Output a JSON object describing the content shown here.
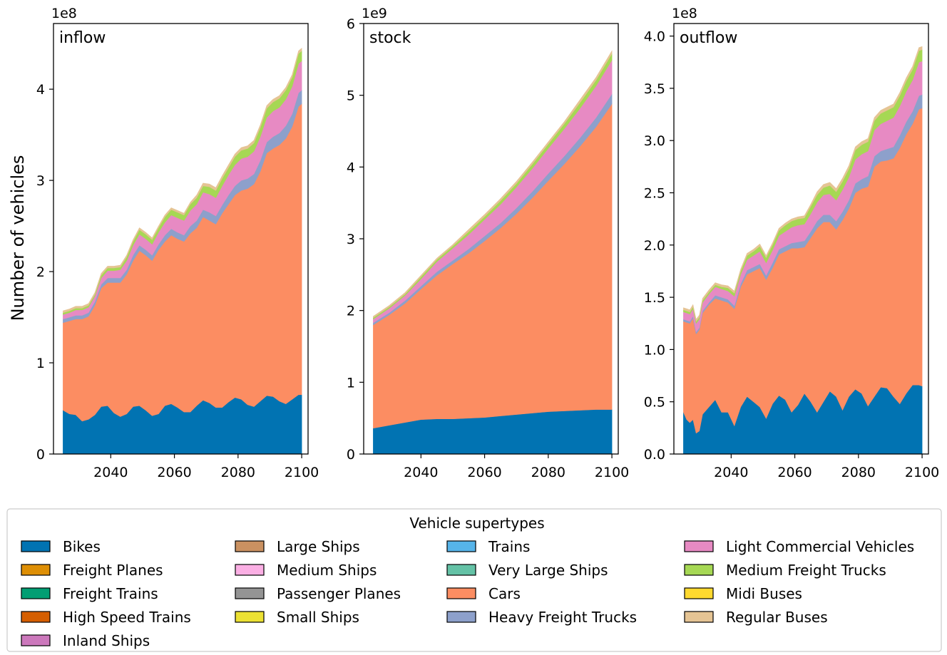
{
  "figure": {
    "ylabel": "Number of vehicles",
    "legend_title": "Vehicle supertypes"
  },
  "colors": {
    "Bikes": "#0173b2",
    "Freight Planes": "#de8f05",
    "Freight Trains": "#029e73",
    "High Speed Trains": "#d55e00",
    "Inland Ships": "#cc78bc",
    "Large Ships": "#ca9161",
    "Medium Ships": "#fbafe4",
    "Passenger Planes": "#949494",
    "Small Ships": "#ece133",
    "Trains": "#56b4e9",
    "Very Large Ships": "#64c2a6",
    "Cars": "#fc8d62",
    "Heavy Freight Trucks": "#8da0cb",
    "Light Commercial Vehicles": "#e78ac3",
    "Medium Freight Trucks": "#a6d854",
    "Midi Buses": "#ffd92f",
    "Regular Buses": "#e5c494"
  },
  "legend": {
    "columns": [
      [
        "Bikes",
        "Freight Planes",
        "Freight Trains",
        "High Speed Trains",
        "Inland Ships"
      ],
      [
        "Large Ships",
        "Medium Ships",
        "Passenger Planes",
        "Small Ships"
      ],
      [
        "Trains",
        "Very Large Ships",
        "Cars",
        "Heavy Freight Trucks"
      ],
      [
        "Light Commercial Vehicles",
        "Medium Freight Trucks",
        "Midi Buses",
        "Regular Buses"
      ]
    ]
  },
  "chart_data": [
    {
      "type": "area",
      "stacked": true,
      "title": "inflow",
      "scale_label": "1e8",
      "ylabel": "Number of vehicles",
      "xlim": [
        2022,
        2102
      ],
      "ylim": [
        0,
        4.72
      ],
      "xticks": [
        2040,
        2060,
        2080,
        2100
      ],
      "yticks": [
        0,
        1,
        2,
        3,
        4
      ],
      "ytick_labels": [
        "0",
        "1",
        "2",
        "3",
        "4"
      ],
      "x": [
        2025,
        2027,
        2029,
        2031,
        2033,
        2035,
        2037,
        2039,
        2041,
        2043,
        2045,
        2047,
        2049,
        2051,
        2053,
        2055,
        2057,
        2059,
        2061,
        2063,
        2065,
        2067,
        2069,
        2071,
        2073,
        2075,
        2077,
        2079,
        2081,
        2083,
        2085,
        2087,
        2089,
        2091,
        2093,
        2095,
        2097,
        2099,
        2100
      ],
      "series": [
        {
          "name": "Bikes",
          "values": [
            0.48,
            0.44,
            0.43,
            0.36,
            0.38,
            0.43,
            0.52,
            0.53,
            0.45,
            0.41,
            0.44,
            0.52,
            0.53,
            0.48,
            0.42,
            0.44,
            0.53,
            0.55,
            0.51,
            0.46,
            0.46,
            0.53,
            0.59,
            0.56,
            0.51,
            0.51,
            0.57,
            0.62,
            0.6,
            0.54,
            0.52,
            0.58,
            0.64,
            0.63,
            0.58,
            0.55,
            0.6,
            0.65,
            0.65
          ]
        },
        {
          "name": "Cars",
          "values": [
            0.96,
            1.02,
            1.05,
            1.12,
            1.13,
            1.2,
            1.3,
            1.35,
            1.43,
            1.47,
            1.53,
            1.6,
            1.7,
            1.7,
            1.7,
            1.8,
            1.8,
            1.85,
            1.85,
            1.87,
            1.96,
            1.95,
            2.01,
            2.0,
            2.01,
            2.13,
            2.17,
            2.22,
            2.29,
            2.37,
            2.44,
            2.52,
            2.66,
            2.72,
            2.81,
            2.91,
            2.99,
            3.16,
            3.19
          ]
        },
        {
          "name": "Heavy Freight Trucks",
          "values": [
            0.04,
            0.04,
            0.04,
            0.04,
            0.04,
            0.04,
            0.04,
            0.05,
            0.05,
            0.05,
            0.05,
            0.06,
            0.06,
            0.06,
            0.06,
            0.06,
            0.07,
            0.07,
            0.07,
            0.07,
            0.08,
            0.08,
            0.08,
            0.09,
            0.09,
            0.09,
            0.1,
            0.1,
            0.11,
            0.11,
            0.11,
            0.12,
            0.12,
            0.13,
            0.13,
            0.14,
            0.14,
            0.15,
            0.15
          ]
        },
        {
          "name": "Light Commercial Vehicles",
          "values": [
            0.05,
            0.05,
            0.06,
            0.06,
            0.06,
            0.06,
            0.07,
            0.08,
            0.08,
            0.09,
            0.1,
            0.11,
            0.12,
            0.12,
            0.12,
            0.13,
            0.14,
            0.15,
            0.16,
            0.16,
            0.17,
            0.18,
            0.19,
            0.2,
            0.2,
            0.21,
            0.22,
            0.23,
            0.24,
            0.24,
            0.25,
            0.26,
            0.27,
            0.28,
            0.28,
            0.29,
            0.3,
            0.32,
            0.32
          ]
        },
        {
          "name": "Medium Freight Trucks",
          "values": [
            0.02,
            0.02,
            0.02,
            0.02,
            0.02,
            0.02,
            0.03,
            0.03,
            0.03,
            0.03,
            0.04,
            0.04,
            0.05,
            0.05,
            0.05,
            0.05,
            0.06,
            0.06,
            0.06,
            0.06,
            0.07,
            0.07,
            0.07,
            0.08,
            0.08,
            0.08,
            0.08,
            0.09,
            0.09,
            0.09,
            0.09,
            0.1,
            0.1,
            0.1,
            0.1,
            0.1,
            0.1,
            0.11,
            0.11
          ]
        },
        {
          "name": "Regular Buses",
          "values": [
            0.02,
            0.02,
            0.02,
            0.02,
            0.02,
            0.02,
            0.02,
            0.02,
            0.02,
            0.02,
            0.02,
            0.02,
            0.02,
            0.02,
            0.02,
            0.02,
            0.02,
            0.02,
            0.02,
            0.02,
            0.02,
            0.03,
            0.03,
            0.03,
            0.03,
            0.03,
            0.03,
            0.03,
            0.03,
            0.03,
            0.03,
            0.03,
            0.03,
            0.03,
            0.03,
            0.03,
            0.03,
            0.03,
            0.03
          ]
        }
      ]
    },
    {
      "type": "area",
      "stacked": true,
      "title": "stock",
      "scale_label": "1e9",
      "xlim": [
        2022,
        2102
      ],
      "ylim": [
        0,
        6.0
      ],
      "xticks": [
        2040,
        2060,
        2080,
        2100
      ],
      "yticks": [
        0,
        1,
        2,
        3,
        4,
        5,
        6
      ],
      "ytick_labels": [
        "0",
        "1",
        "2",
        "3",
        "4",
        "5",
        "6"
      ],
      "x": [
        2025,
        2030,
        2035,
        2040,
        2045,
        2050,
        2055,
        2060,
        2065,
        2070,
        2075,
        2080,
        2085,
        2090,
        2095,
        2100
      ],
      "series": [
        {
          "name": "Bikes",
          "values": [
            0.36,
            0.4,
            0.44,
            0.48,
            0.49,
            0.49,
            0.5,
            0.51,
            0.53,
            0.55,
            0.57,
            0.59,
            0.6,
            0.61,
            0.62,
            0.62
          ]
        },
        {
          "name": "Cars",
          "values": [
            1.44,
            1.54,
            1.66,
            1.82,
            2.0,
            2.16,
            2.3,
            2.46,
            2.62,
            2.8,
            3.0,
            3.22,
            3.44,
            3.68,
            3.94,
            4.26
          ]
        },
        {
          "name": "Heavy Freight Trucks",
          "values": [
            0.03,
            0.03,
            0.04,
            0.04,
            0.05,
            0.05,
            0.06,
            0.07,
            0.07,
            0.08,
            0.09,
            0.1,
            0.11,
            0.12,
            0.13,
            0.14
          ]
        },
        {
          "name": "Light Commercial Vehicles",
          "values": [
            0.05,
            0.06,
            0.07,
            0.1,
            0.14,
            0.17,
            0.2,
            0.23,
            0.26,
            0.29,
            0.32,
            0.35,
            0.38,
            0.41,
            0.44,
            0.47
          ]
        },
        {
          "name": "Medium Freight Trucks",
          "values": [
            0.02,
            0.02,
            0.02,
            0.03,
            0.03,
            0.03,
            0.04,
            0.04,
            0.05,
            0.05,
            0.06,
            0.06,
            0.07,
            0.08,
            0.08,
            0.09
          ]
        },
        {
          "name": "Regular Buses",
          "values": [
            0.02,
            0.02,
            0.02,
            0.02,
            0.02,
            0.02,
            0.03,
            0.03,
            0.03,
            0.03,
            0.03,
            0.03,
            0.03,
            0.04,
            0.04,
            0.04
          ]
        }
      ]
    },
    {
      "type": "area",
      "stacked": true,
      "title": "outflow",
      "scale_label": "1e8",
      "xlim": [
        2022,
        2102
      ],
      "ylim": [
        0,
        4.12
      ],
      "xticks": [
        2040,
        2060,
        2080,
        2100
      ],
      "yticks": [
        0,
        0.5,
        1.0,
        1.5,
        2.0,
        2.5,
        3.0,
        3.5,
        4.0
      ],
      "ytick_labels": [
        "0.0",
        "0.5",
        "1.0",
        "1.5",
        "2.0",
        "2.5",
        "3.0",
        "3.5",
        "4.0"
      ],
      "x": [
        2025,
        2026,
        2027,
        2028,
        2029,
        2030,
        2031,
        2033,
        2035,
        2037,
        2039,
        2041,
        2043,
        2045,
        2047,
        2049,
        2051,
        2053,
        2055,
        2057,
        2059,
        2061,
        2063,
        2065,
        2067,
        2069,
        2071,
        2073,
        2075,
        2077,
        2079,
        2081,
        2083,
        2085,
        2087,
        2089,
        2091,
        2093,
        2095,
        2097,
        2099,
        2100
      ],
      "series": [
        {
          "name": "Bikes",
          "values": [
            0.4,
            0.33,
            0.3,
            0.33,
            0.2,
            0.22,
            0.38,
            0.45,
            0.52,
            0.4,
            0.4,
            0.27,
            0.45,
            0.55,
            0.5,
            0.45,
            0.34,
            0.48,
            0.56,
            0.52,
            0.4,
            0.47,
            0.58,
            0.5,
            0.4,
            0.5,
            0.6,
            0.55,
            0.42,
            0.55,
            0.62,
            0.58,
            0.46,
            0.55,
            0.64,
            0.63,
            0.55,
            0.48,
            0.58,
            0.66,
            0.66,
            0.65
          ]
        },
        {
          "name": "Cars",
          "values": [
            0.87,
            0.93,
            0.95,
            0.97,
            0.95,
            0.97,
            0.97,
            0.98,
            0.97,
            1.07,
            1.05,
            1.12,
            1.15,
            1.17,
            1.25,
            1.33,
            1.33,
            1.3,
            1.35,
            1.42,
            1.57,
            1.5,
            1.4,
            1.57,
            1.76,
            1.72,
            1.62,
            1.6,
            1.82,
            1.8,
            1.88,
            1.96,
            2.1,
            2.2,
            2.16,
            2.18,
            2.28,
            2.45,
            2.48,
            2.5,
            2.64,
            2.66
          ]
        },
        {
          "name": "Heavy Freight Trucks",
          "values": [
            0.02,
            0.02,
            0.02,
            0.02,
            0.02,
            0.02,
            0.02,
            0.02,
            0.03,
            0.03,
            0.03,
            0.03,
            0.03,
            0.04,
            0.04,
            0.04,
            0.04,
            0.05,
            0.05,
            0.05,
            0.05,
            0.06,
            0.06,
            0.06,
            0.07,
            0.07,
            0.07,
            0.08,
            0.08,
            0.08,
            0.09,
            0.09,
            0.1,
            0.1,
            0.1,
            0.11,
            0.11,
            0.12,
            0.12,
            0.12,
            0.13,
            0.13
          ]
        },
        {
          "name": "Light Commercial Vehicles",
          "values": [
            0.07,
            0.07,
            0.07,
            0.07,
            0.08,
            0.08,
            0.08,
            0.08,
            0.08,
            0.08,
            0.08,
            0.09,
            0.09,
            0.1,
            0.11,
            0.12,
            0.12,
            0.12,
            0.13,
            0.14,
            0.15,
            0.16,
            0.16,
            0.17,
            0.18,
            0.19,
            0.2,
            0.2,
            0.21,
            0.22,
            0.23,
            0.24,
            0.24,
            0.25,
            0.26,
            0.27,
            0.28,
            0.28,
            0.29,
            0.3,
            0.32,
            0.32
          ]
        },
        {
          "name": "Medium Freight Trucks",
          "values": [
            0.02,
            0.02,
            0.02,
            0.02,
            0.02,
            0.02,
            0.02,
            0.02,
            0.02,
            0.02,
            0.03,
            0.03,
            0.03,
            0.04,
            0.04,
            0.05,
            0.05,
            0.05,
            0.05,
            0.06,
            0.06,
            0.06,
            0.06,
            0.07,
            0.07,
            0.07,
            0.08,
            0.08,
            0.08,
            0.08,
            0.09,
            0.09,
            0.09,
            0.09,
            0.1,
            0.1,
            0.1,
            0.1,
            0.1,
            0.1,
            0.11,
            0.11
          ]
        },
        {
          "name": "Regular Buses",
          "values": [
            0.02,
            0.02,
            0.02,
            0.02,
            0.02,
            0.02,
            0.02,
            0.02,
            0.02,
            0.02,
            0.02,
            0.02,
            0.02,
            0.02,
            0.02,
            0.02,
            0.02,
            0.02,
            0.02,
            0.02,
            0.02,
            0.02,
            0.02,
            0.02,
            0.03,
            0.03,
            0.03,
            0.03,
            0.03,
            0.03,
            0.03,
            0.03,
            0.03,
            0.03,
            0.03,
            0.03,
            0.03,
            0.03,
            0.03,
            0.03,
            0.03,
            0.03
          ]
        }
      ]
    }
  ]
}
